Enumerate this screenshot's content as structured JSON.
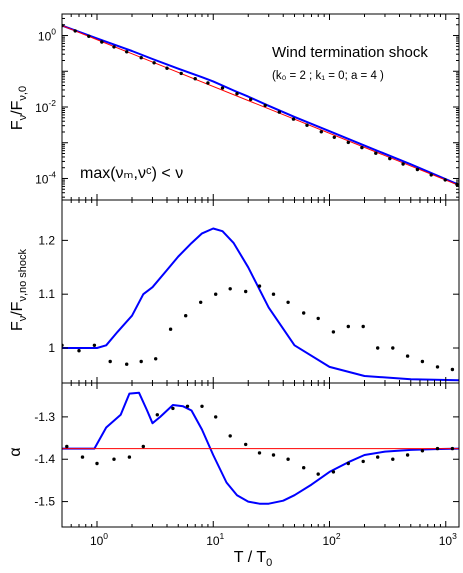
{
  "chart_data": [
    {
      "type": "line",
      "panel": "flux",
      "title": "Wind termination shock",
      "subtitle": "(k₀ = 2 ; k₁ = 0; a = 4 )",
      "annotation": "max(νₘ,νᶜ) < ν",
      "ylabel": "Fν/Fν,0",
      "ylabel_parts": {
        "main": "F",
        "sub1": "ν",
        "mid": "/F",
        "sub2": "ν,0"
      },
      "xscale": "log",
      "yscale": "log",
      "xlim": [
        0.5,
        1300
      ],
      "ylim": [
        2.5e-05,
        4
      ],
      "y_ticks": [
        {
          "base": "10",
          "exp": "0",
          "value": 1
        },
        {
          "base": "10",
          "exp": "-2",
          "value": 0.01
        },
        {
          "base": "10",
          "exp": "-4",
          "value": 0.0001
        }
      ],
      "series": [
        {
          "color": "#0000ff",
          "style": "line",
          "x": [
            0.5,
            1,
            2,
            3,
            5,
            8,
            10,
            15,
            20,
            30,
            50,
            100,
            200,
            500,
            1300
          ],
          "y": [
            1.9,
            0.83,
            0.37,
            0.22,
            0.118,
            0.068,
            0.052,
            0.029,
            0.0195,
            0.0108,
            0.0053,
            0.0021,
            0.00083,
            0.00025,
            6.6e-05
          ]
        },
        {
          "color": "#ff0000",
          "style": "line",
          "x": [
            0.5,
            1300
          ],
          "y": [
            1.9,
            6.4e-05
          ]
        },
        {
          "color": "#000000",
          "style": "dots",
          "x": [
            0.5,
            0.65,
            0.85,
            1.1,
            1.4,
            1.8,
            2.4,
            3.1,
            4.0,
            5.3,
            7.0,
            9.0,
            12,
            16,
            21,
            28,
            37,
            49,
            64,
            85,
            110,
            145,
            190,
            250,
            330,
            430,
            570,
            750,
            990,
            1250
          ],
          "y": [
            1.9,
            1.35,
            0.95,
            0.66,
            0.48,
            0.35,
            0.24,
            0.172,
            0.122,
            0.087,
            0.062,
            0.047,
            0.034,
            0.0235,
            0.0163,
            0.0111,
            0.0072,
            0.0046,
            0.0031,
            0.00202,
            0.00142,
            0.00102,
            0.00073,
            0.00051,
            0.00036,
            0.000255,
            0.000178,
            0.000126,
            9.1e-05,
            6.8e-05
          ]
        }
      ]
    },
    {
      "type": "line",
      "panel": "ratio",
      "ylabel": "Fν/Fν,no shock",
      "ylabel_parts": {
        "main": "F",
        "sub1": "ν",
        "mid": "/F",
        "sub2": "ν,no shock"
      },
      "xscale": "log",
      "xlim": [
        0.5,
        1300
      ],
      "ylim": [
        0.935,
        1.275
      ],
      "y_ticks": [
        {
          "label": "1.2",
          "value": 1.2
        },
        {
          "label": "1.1",
          "value": 1.1
        },
        {
          "label": "1",
          "value": 1.0
        }
      ],
      "series": [
        {
          "color": "#0000ff",
          "style": "line",
          "x": [
            0.5,
            0.8,
            1.0,
            1.2,
            1.5,
            2.0,
            2.5,
            3.0,
            4.0,
            5.0,
            6.5,
            8.0,
            10,
            12,
            15,
            20,
            30,
            50,
            100,
            200,
            500,
            1300
          ],
          "y": [
            1.0,
            1.0,
            1.0,
            1.005,
            1.03,
            1.06,
            1.1,
            1.113,
            1.145,
            1.17,
            1.195,
            1.213,
            1.222,
            1.217,
            1.195,
            1.15,
            1.075,
            1.005,
            0.965,
            0.948,
            0.942,
            0.94
          ]
        },
        {
          "color": "#000000",
          "style": "dots",
          "x": [
            0.5,
            0.7,
            0.95,
            1.3,
            1.8,
            2.4,
            3.2,
            4.3,
            5.8,
            7.8,
            10.5,
            14,
            19,
            25,
            33,
            44,
            60,
            80,
            108,
            145,
            195,
            260,
            350,
            470,
            630,
            850,
            1140
          ],
          "y": [
            1.005,
            0.995,
            1.005,
            0.975,
            0.97,
            0.975,
            0.98,
            1.035,
            1.06,
            1.085,
            1.1,
            1.11,
            1.105,
            1.115,
            1.1,
            1.085,
            1.065,
            1.055,
            1.03,
            1.04,
            1.04,
            1.0,
            1.0,
            0.985,
            0.975,
            0.965,
            0.96
          ]
        }
      ]
    },
    {
      "type": "line",
      "panel": "index",
      "ylabel": "α",
      "xlabel": "T / T₀",
      "xlabel_parts": {
        "main": "T / T",
        "sub": "0"
      },
      "xscale": "log",
      "xlim": [
        0.5,
        1300
      ],
      "ylim": [
        -1.56,
        -1.22
      ],
      "x_ticks": [
        {
          "base": "10",
          "exp": "0",
          "value": 1
        },
        {
          "base": "10",
          "exp": "1",
          "value": 10
        },
        {
          "base": "10",
          "exp": "2",
          "value": 100
        },
        {
          "base": "10",
          "exp": "3",
          "value": 1000
        }
      ],
      "y_ticks": [
        {
          "label": "-1.3",
          "value": -1.3
        },
        {
          "label": "-1.4",
          "value": -1.4
        },
        {
          "label": "-1.5",
          "value": -1.5
        }
      ],
      "series": [
        {
          "color": "#0000ff",
          "style": "line",
          "x": [
            0.5,
            0.8,
            0.95,
            1.2,
            1.6,
            1.9,
            2.3,
            2.7,
            3.0,
            3.5,
            4.5,
            5.5,
            6.5,
            8.0,
            10,
            13,
            16,
            20,
            25,
            30,
            40,
            50,
            70,
            100,
            150,
            200,
            300,
            500,
            800,
            1300
          ],
          "y": [
            -1.375,
            -1.375,
            -1.375,
            -1.325,
            -1.295,
            -1.245,
            -1.243,
            -1.285,
            -1.315,
            -1.3,
            -1.272,
            -1.275,
            -1.285,
            -1.33,
            -1.39,
            -1.455,
            -1.485,
            -1.5,
            -1.505,
            -1.505,
            -1.498,
            -1.485,
            -1.46,
            -1.43,
            -1.405,
            -1.39,
            -1.382,
            -1.378,
            -1.376,
            -1.375
          ]
        },
        {
          "color": "#ff0000",
          "style": "line",
          "x": [
            0.5,
            1300
          ],
          "y": [
            -1.375,
            -1.375
          ]
        },
        {
          "color": "#000000",
          "style": "dots",
          "x": [
            0.55,
            0.75,
            1.0,
            1.4,
            1.9,
            2.5,
            3.3,
            4.5,
            6.0,
            8.0,
            10.5,
            14,
            19,
            25,
            33,
            44,
            60,
            80,
            108,
            145,
            195,
            260,
            350,
            470,
            630,
            850,
            1140
          ],
          "y": [
            -1.37,
            -1.395,
            -1.41,
            -1.4,
            -1.395,
            -1.37,
            -1.295,
            -1.28,
            -1.275,
            -1.275,
            -1.3,
            -1.345,
            -1.365,
            -1.385,
            -1.39,
            -1.4,
            -1.42,
            -1.435,
            -1.43,
            -1.41,
            -1.405,
            -1.395,
            -1.4,
            -1.39,
            -1.38,
            -1.375,
            -1.375
          ]
        }
      ]
    }
  ]
}
